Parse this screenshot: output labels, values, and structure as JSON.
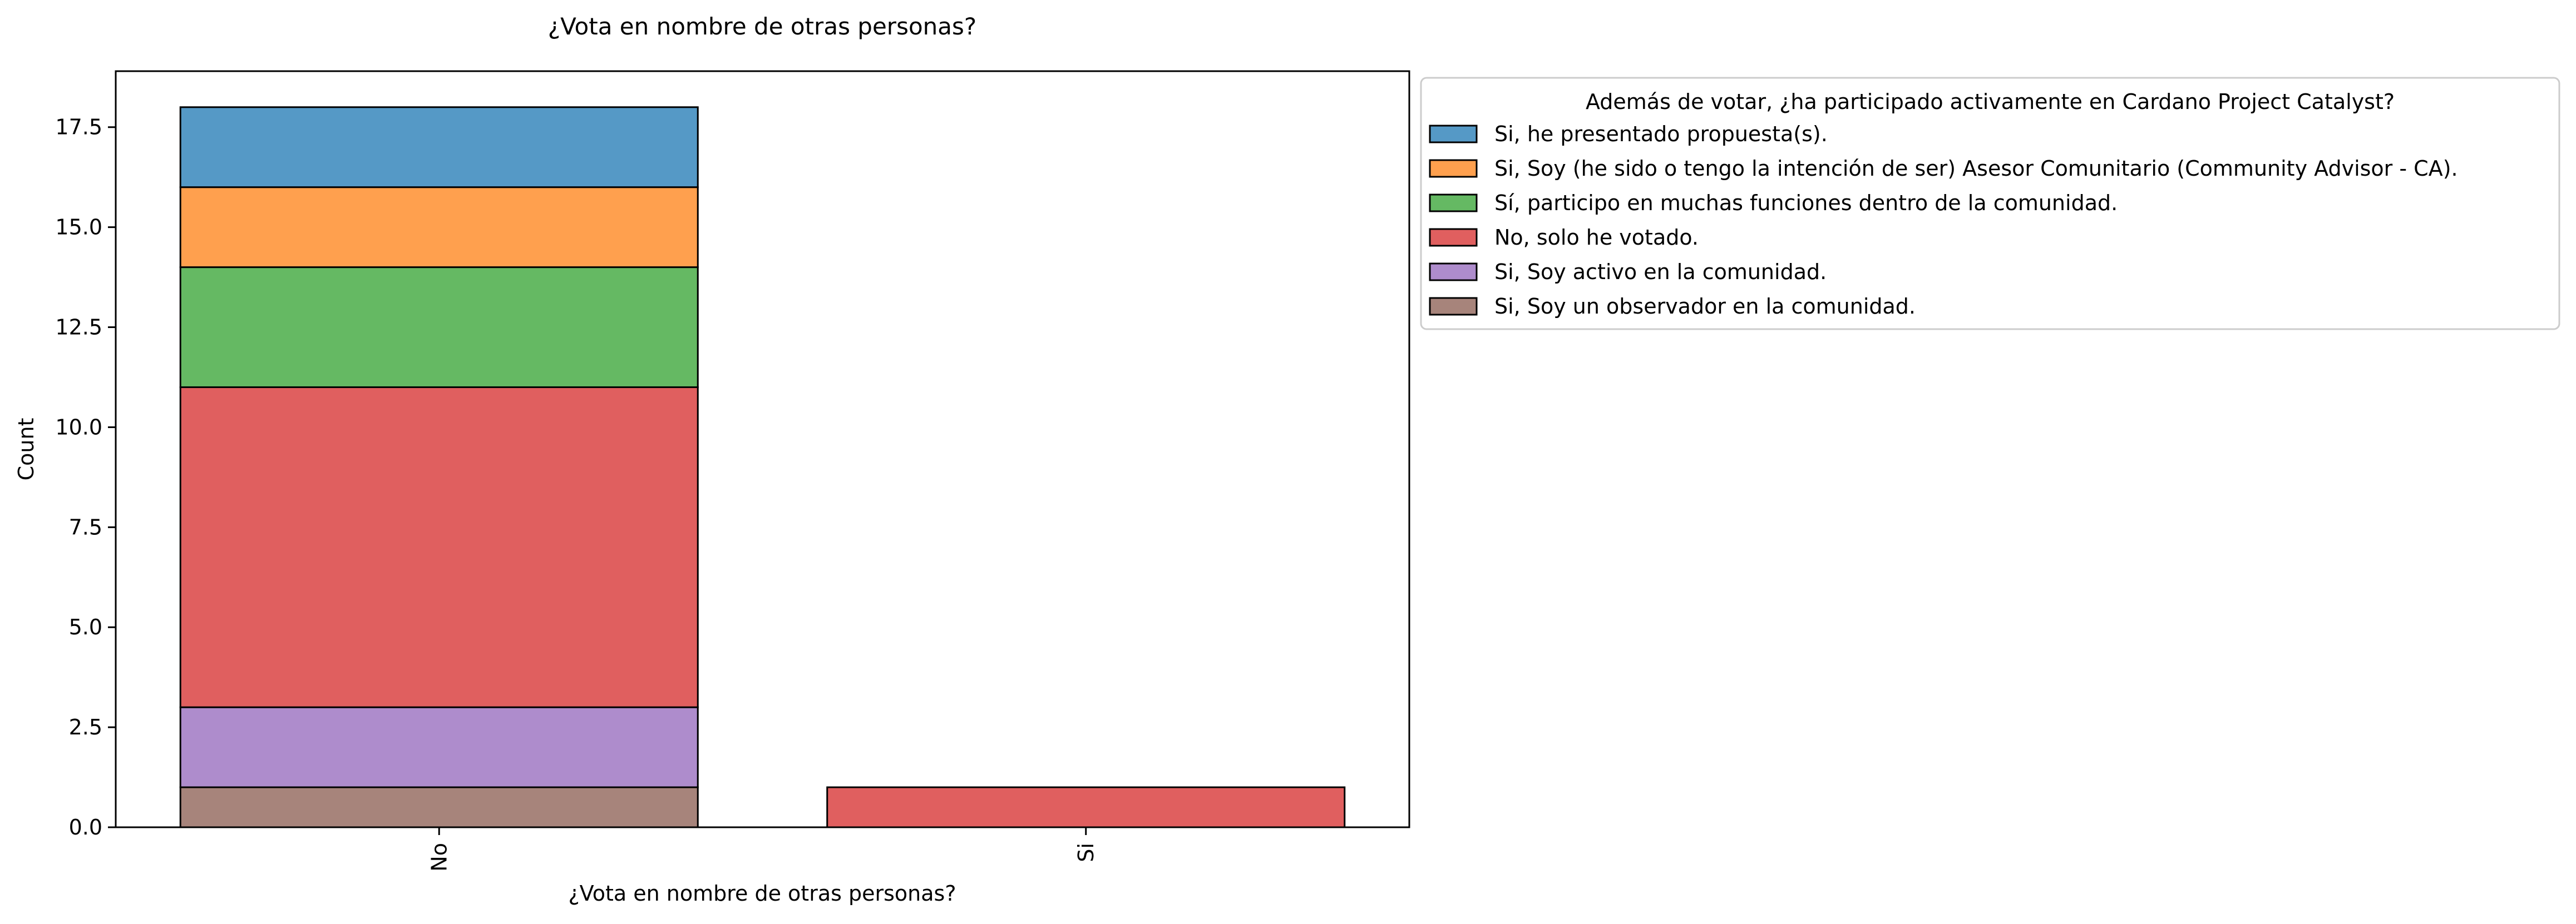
{
  "chart_data": {
    "type": "bar",
    "stacked": true,
    "title": "¿Vota en nombre de otras personas?",
    "xlabel": "¿Vota en nombre de otras personas?",
    "ylabel": "Count",
    "categories": [
      "No",
      "Si"
    ],
    "ylim": [
      0,
      18.9
    ],
    "yticks": [
      "0.0",
      "2.5",
      "5.0",
      "7.5",
      "10.0",
      "12.5",
      "15.0",
      "17.5"
    ],
    "legend": {
      "title": "Además de votar, ¿ha participado activamente en Cardano Project Catalyst?",
      "placement": "outside-upper-right"
    },
    "series": [
      {
        "name": "Si, Soy un observador en la comunidad.",
        "color": "#a7847b",
        "values": [
          1,
          0
        ]
      },
      {
        "name": "Si, Soy activo en la comunidad.",
        "color": "#ae8ccc",
        "values": [
          2,
          0
        ]
      },
      {
        "name": "No, solo he votado.",
        "color": "#e05f5f",
        "values": [
          8,
          1
        ]
      },
      {
        "name": "Sí, participo en muchas funciones dentro de la comunidad.",
        "color": "#65b963",
        "values": [
          3,
          0
        ]
      },
      {
        "name": "Si, Soy (he sido o tengo la intención de ser) Asesor Comunitario (Community Advisor - CA).",
        "color": "#ffa04e",
        "values": [
          2,
          0
        ]
      },
      {
        "name": "Si, he presentado propuesta(s).",
        "color": "#5599c6",
        "values": [
          2,
          0
        ]
      }
    ],
    "legend_order": [
      "Si, he presentado propuesta(s).",
      "Si, Soy (he sido o tengo la intención de ser) Asesor Comunitario (Community Advisor - CA).",
      "Sí, participo en muchas funciones dentro de la comunidad.",
      "No, solo he votado.",
      "Si, Soy activo en la comunidad.",
      "Si, Soy un observador en la comunidad."
    ]
  }
}
